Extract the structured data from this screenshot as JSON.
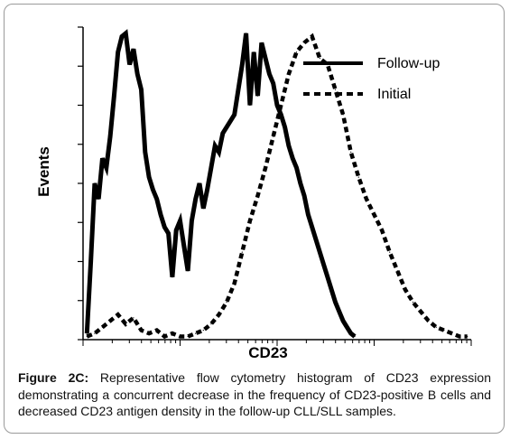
{
  "chart_data": {
    "type": "line",
    "xlabel": "CD23",
    "ylabel": "Events",
    "xscale": "log",
    "x_ticks_labeled": false,
    "y_ticks_labeled": false,
    "grid": false,
    "legend_position": "top-right",
    "x_range": [
      0,
      100
    ],
    "y_range": [
      0,
      100
    ],
    "series": [
      {
        "name": "Follow-up",
        "style": "solid",
        "x": [
          1,
          2,
          3,
          4,
          5,
          6,
          7,
          8,
          9,
          10,
          11,
          12,
          13,
          14,
          15,
          16,
          17,
          18,
          19,
          20,
          21,
          22,
          23,
          24,
          25,
          26,
          27,
          28,
          29,
          30,
          31,
          32,
          33,
          34,
          35,
          36,
          37,
          38,
          39,
          40,
          41,
          42,
          43,
          44,
          45,
          46,
          47,
          48,
          49,
          50,
          51,
          52,
          53,
          54,
          55,
          56,
          57,
          58,
          59,
          60,
          61,
          62,
          63,
          64,
          65,
          66,
          67,
          68,
          69,
          70
        ],
        "values": [
          2,
          25,
          50,
          45,
          58,
          55,
          65,
          78,
          92,
          97,
          98,
          88,
          93,
          85,
          80,
          60,
          52,
          48,
          45,
          40,
          36,
          34,
          20,
          35,
          38,
          30,
          22,
          38,
          45,
          50,
          42,
          48,
          55,
          62,
          60,
          66,
          68,
          70,
          72,
          80,
          88,
          98,
          75,
          92,
          78,
          95,
          90,
          85,
          82,
          75,
          72,
          68,
          62,
          58,
          55,
          50,
          46,
          40,
          36,
          32,
          28,
          24,
          20,
          16,
          12,
          9,
          6,
          4,
          2,
          1
        ]
      },
      {
        "name": "Initial",
        "style": "dashed",
        "x": [
          1,
          3,
          5,
          7,
          9,
          11,
          13,
          15,
          17,
          19,
          21,
          23,
          25,
          27,
          29,
          31,
          33,
          35,
          37,
          39,
          41,
          43,
          45,
          47,
          49,
          51,
          53,
          55,
          57,
          59,
          61,
          63,
          65,
          67,
          69,
          71,
          73,
          75,
          77,
          79,
          81,
          83,
          85,
          87,
          89,
          91,
          93,
          95,
          97,
          99
        ],
        "values": [
          1,
          2,
          4,
          6,
          8,
          5,
          7,
          3,
          2,
          3,
          1,
          2,
          1,
          1,
          2,
          3,
          5,
          8,
          12,
          18,
          28,
          38,
          46,
          55,
          65,
          75,
          85,
          92,
          95,
          97,
          90,
          88,
          80,
          72,
          60,
          52,
          45,
          40,
          35,
          28,
          22,
          16,
          12,
          9,
          6,
          4,
          3,
          2,
          1,
          1
        ]
      }
    ]
  },
  "legend": {
    "items": [
      {
        "label": "Follow-up",
        "style": "solid"
      },
      {
        "label": "Initial",
        "style": "dashed"
      }
    ]
  },
  "caption": {
    "lead": "Figure 2C:",
    "text": " Representative flow cytometry histogram of CD23 expression demonstrating a concurrent decrease in the frequency of CD23-positive B cells and decreased CD23 antigen density in the follow-up CLL/SLL samples."
  }
}
